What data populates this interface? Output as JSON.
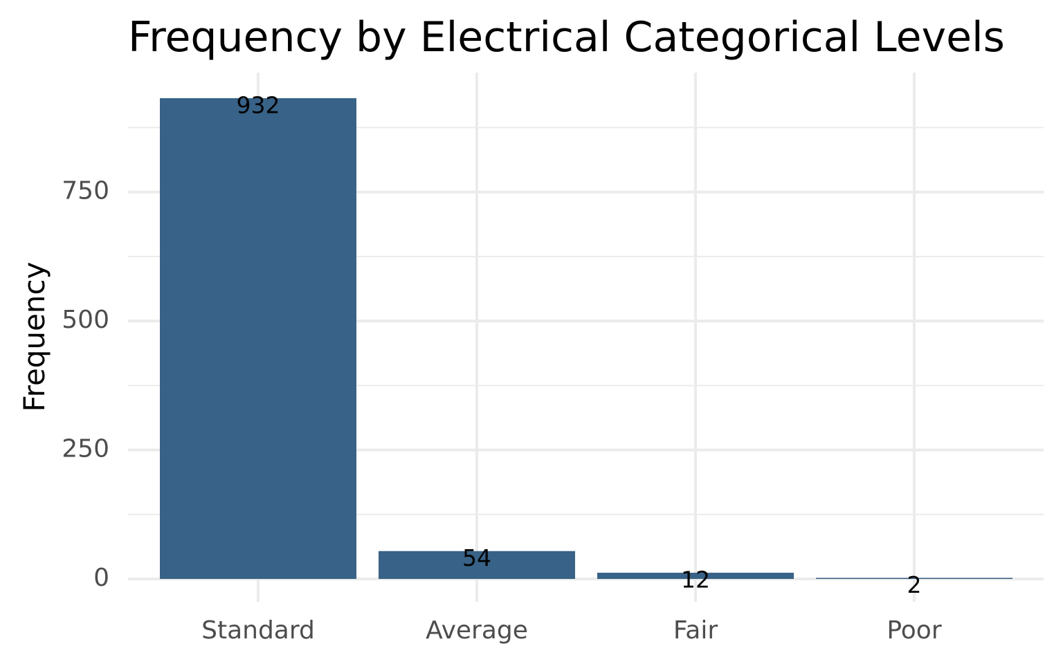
{
  "chart_data": {
    "type": "bar",
    "title": "Frequency by Electrical Categorical Levels",
    "xlabel": "",
    "ylabel": "Frequency",
    "categories": [
      "Standard",
      "Average",
      "Fair",
      "Poor"
    ],
    "values": [
      932,
      54,
      12,
      2
    ],
    "data_labels": [
      "932",
      "54",
      "12",
      "2"
    ],
    "ylim": [
      0,
      980
    ],
    "yticks": [
      0,
      250,
      500,
      750
    ],
    "ytick_labels": [
      "0",
      "250",
      "500",
      "750"
    ],
    "y_minor_ticks": [
      125,
      375,
      625,
      875
    ],
    "grid": true,
    "legend": "none",
    "bar_color": "#386287",
    "grid_color": "#ebebeb"
  }
}
